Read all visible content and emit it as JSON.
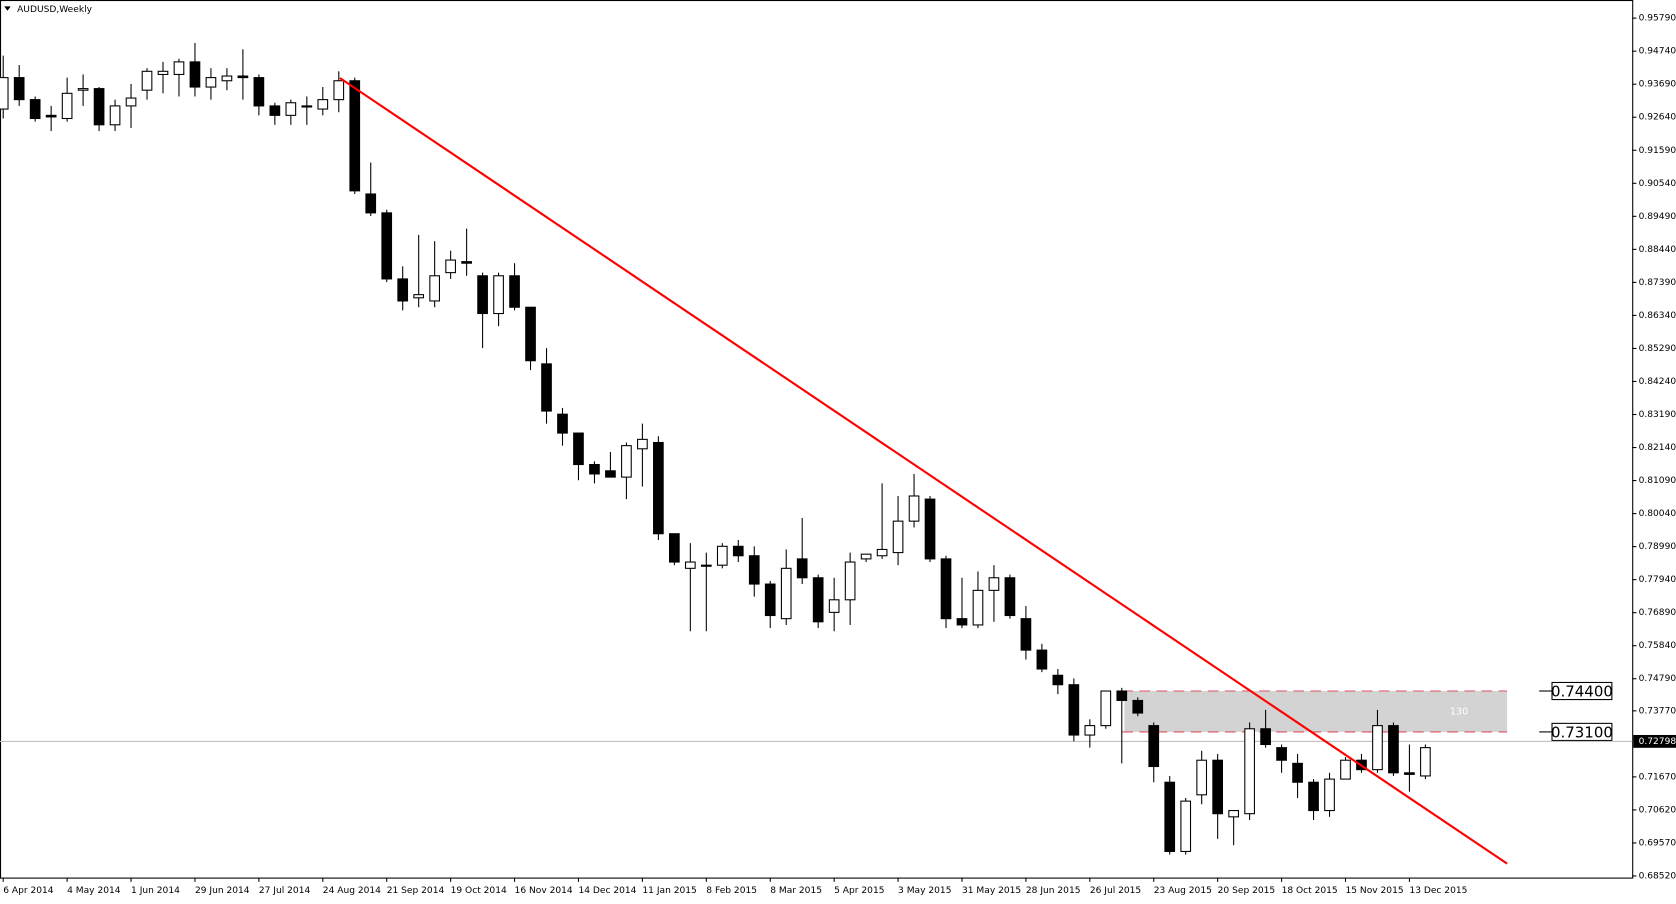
{
  "chart_data": {
    "type": "candlestick",
    "title": "AUDUSD,Weekly",
    "categories": [
      "6 Apr 2014",
      null,
      null,
      null,
      "4 May 2014",
      null,
      null,
      null,
      "1 Jun 2014",
      null,
      null,
      null,
      "29 Jun 2014",
      null,
      null,
      null,
      "27 Jul 2014",
      null,
      null,
      null,
      "24 Aug 2014",
      null,
      null,
      null,
      "21 Sep 2014",
      null,
      null,
      null,
      "19 Oct 2014",
      null,
      null,
      null,
      "16 Nov 2014",
      null,
      null,
      null,
      "14 Dec 2014",
      null,
      null,
      null,
      "11 Jan 2015",
      null,
      null,
      null,
      "8 Feb 2015",
      null,
      null,
      null,
      "8 Mar 2015",
      null,
      null,
      null,
      "5 Apr 2015",
      null,
      null,
      null,
      "3 May 2015",
      null,
      null,
      null,
      "31 May 2015",
      null,
      null,
      null,
      "28 Jun 2015",
      null,
      null,
      null,
      "26 Jul 2015",
      null,
      null,
      null,
      "23 Aug 2015",
      null,
      null,
      null,
      "20 Sep 2015",
      null,
      null,
      null,
      "18 Oct 2015",
      null,
      null,
      null,
      "15 Nov 2015",
      null,
      null,
      null,
      "13 Dec 2015",
      null
    ],
    "open": [
      0.929,
      0.939,
      0.932,
      0.927,
      0.926,
      0.935,
      0.9355,
      0.924,
      0.93,
      0.935,
      0.94,
      0.94,
      0.944,
      0.936,
      0.938,
      0.9395,
      0.939,
      0.93,
      0.927,
      0.93,
      0.929,
      0.932,
      0.938,
      0.902,
      0.896,
      0.875,
      0.869,
      0.868,
      0.877,
      0.8805,
      0.876,
      0.864,
      0.876,
      0.866,
      0.848,
      0.832,
      0.826,
      0.816,
      0.814,
      0.812,
      0.821,
      0.823,
      0.794,
      0.783,
      0.784,
      0.784,
      0.79,
      0.787,
      0.778,
      0.767,
      0.786,
      0.78,
      0.769,
      0.773,
      0.786,
      0.787,
      0.788,
      0.798,
      0.805,
      0.786,
      0.767,
      0.765,
      0.776,
      0.78,
      0.767,
      0.757,
      0.749,
      0.746,
      0.73,
      0.733,
      0.744,
      0.741,
      0.733,
      0.715,
      0.693,
      0.711,
      0.722,
      0.704,
      0.705,
      0.732,
      0.726,
      0.721,
      0.715,
      0.706,
      0.716,
      0.722,
      0.719,
      0.733,
      0.718,
      0.717
    ],
    "high": [
      0.946,
      0.943,
      0.933,
      0.93,
      0.939,
      0.94,
      0.936,
      0.932,
      0.937,
      0.942,
      0.944,
      0.945,
      0.95,
      0.942,
      0.942,
      0.948,
      0.94,
      0.931,
      0.932,
      0.933,
      0.936,
      0.941,
      0.939,
      0.912,
      0.897,
      0.879,
      0.889,
      0.887,
      0.884,
      0.891,
      0.877,
      0.877,
      0.88,
      0.866,
      0.853,
      0.834,
      0.826,
      0.817,
      0.82,
      0.823,
      0.829,
      0.825,
      0.794,
      0.791,
      0.788,
      0.791,
      0.792,
      0.79,
      0.779,
      0.789,
      0.799,
      0.781,
      0.78,
      0.788,
      0.787,
      0.81,
      0.806,
      0.813,
      0.806,
      0.787,
      0.78,
      0.782,
      0.784,
      0.781,
      0.771,
      0.759,
      0.751,
      0.748,
      0.735,
      0.744,
      0.745,
      0.742,
      0.734,
      0.717,
      0.71,
      0.725,
      0.724,
      0.706,
      0.734,
      0.738,
      0.727,
      0.724,
      0.716,
      0.718,
      0.723,
      0.724,
      0.738,
      0.734,
      0.727,
      0.727
    ],
    "low": [
      0.926,
      0.93,
      0.925,
      0.922,
      0.925,
      0.93,
      0.922,
      0.922,
      0.923,
      0.932,
      0.934,
      0.933,
      0.933,
      0.932,
      0.935,
      0.932,
      0.927,
      0.924,
      0.924,
      0.924,
      0.927,
      0.928,
      0.902,
      0.895,
      0.874,
      0.865,
      0.866,
      0.866,
      0.875,
      0.876,
      0.853,
      0.86,
      0.865,
      0.846,
      0.829,
      0.822,
      0.811,
      0.81,
      0.812,
      0.805,
      0.809,
      0.792,
      0.784,
      0.763,
      0.763,
      0.783,
      0.785,
      0.774,
      0.764,
      0.765,
      0.778,
      0.764,
      0.763,
      0.765,
      0.785,
      0.786,
      0.784,
      0.796,
      0.785,
      0.764,
      0.764,
      0.764,
      0.766,
      0.767,
      0.754,
      0.75,
      0.743,
      0.728,
      0.726,
      0.732,
      0.721,
      0.736,
      0.715,
      0.692,
      0.692,
      0.708,
      0.697,
      0.695,
      0.703,
      0.726,
      0.718,
      0.71,
      0.703,
      0.704,
      0.716,
      0.718,
      0.718,
      0.717,
      0.712,
      0.716
    ],
    "close": [
      0.939,
      0.932,
      0.926,
      0.9265,
      0.934,
      0.9355,
      0.924,
      0.93,
      0.9325,
      0.941,
      0.941,
      0.944,
      0.936,
      0.939,
      0.9395,
      0.939,
      0.93,
      0.927,
      0.931,
      0.93,
      0.932,
      0.938,
      0.903,
      0.896,
      0.875,
      0.868,
      0.87,
      0.876,
      0.881,
      0.88,
      0.864,
      0.876,
      0.866,
      0.849,
      0.833,
      0.826,
      0.816,
      0.813,
      0.812,
      0.822,
      0.824,
      0.794,
      0.785,
      0.785,
      0.784,
      0.79,
      0.787,
      0.778,
      0.768,
      0.783,
      0.78,
      0.766,
      0.773,
      0.785,
      0.7875,
      0.789,
      0.798,
      0.806,
      0.786,
      0.767,
      0.765,
      0.776,
      0.78,
      0.768,
      0.757,
      0.751,
      0.746,
      0.73,
      0.733,
      0.744,
      0.741,
      0.737,
      0.72,
      0.693,
      0.709,
      0.722,
      0.705,
      0.706,
      0.732,
      0.727,
      0.722,
      0.715,
      0.706,
      0.716,
      0.722,
      0.719,
      0.733,
      0.718,
      0.7175,
      0.726
    ],
    "up_color": "#ffffff",
    "down_color": "#000000",
    "trendline_color": "#ff0000",
    "ylim": [
      0.6847,
      0.96367
    ],
    "yticks": [
      {
        "value": 0.9579,
        "label": "0.95790"
      },
      {
        "value": 0.9474,
        "label": "0.94740"
      },
      {
        "value": 0.9369,
        "label": "0.93690"
      },
      {
        "value": 0.9264,
        "label": "0.92640"
      },
      {
        "value": 0.9159,
        "label": "0.91590"
      },
      {
        "value": 0.9054,
        "label": "0.90540"
      },
      {
        "value": 0.8949,
        "label": "0.89490"
      },
      {
        "value": 0.8844,
        "label": "0.88440"
      },
      {
        "value": 0.8739,
        "label": "0.87390"
      },
      {
        "value": 0.8634,
        "label": "0.86340"
      },
      {
        "value": 0.8529,
        "label": "0.85290"
      },
      {
        "value": 0.8424,
        "label": "0.84240"
      },
      {
        "value": 0.8319,
        "label": "0.83190"
      },
      {
        "value": 0.8214,
        "label": "0.82140"
      },
      {
        "value": 0.8109,
        "label": "0.81090"
      },
      {
        "value": 0.8004,
        "label": "0.80040"
      },
      {
        "value": 0.7899,
        "label": "0.78990"
      },
      {
        "value": 0.7794,
        "label": "0.77940"
      },
      {
        "value": 0.7689,
        "label": "0.76890"
      },
      {
        "value": 0.7584,
        "label": "0.75840"
      },
      {
        "value": 0.7479,
        "label": "0.74790"
      },
      {
        "value": 0.7377,
        "label": "0.73770"
      },
      {
        "value": 0.7167,
        "label": "0.71670"
      },
      {
        "value": 0.7062,
        "label": "0.70620"
      },
      {
        "value": 0.6957,
        "label": "0.69570"
      },
      {
        "value": 0.6852,
        "label": "0.68520"
      }
    ],
    "current_price": {
      "value": 0.72798,
      "label": "0.72798"
    },
    "zone": {
      "high": 0.744,
      "high_label": "0.74400",
      "low": 0.731,
      "low_label": "0.73100",
      "text": "130"
    }
  }
}
